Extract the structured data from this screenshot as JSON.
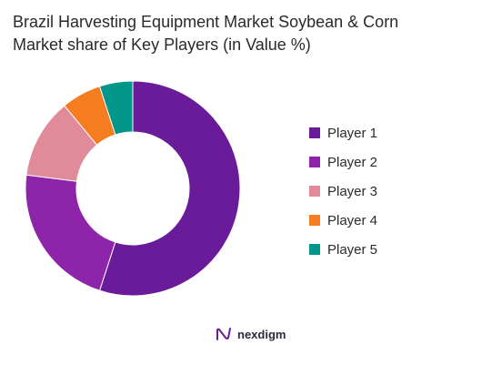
{
  "title_line1": "Brazil Harvesting Equipment Market Soybean & Corn",
  "title_line2": "Market share of Key Players (in Value %)",
  "brand": {
    "name": "nexdigm",
    "icon": "nexdigm-logo-icon",
    "color": "#6a1b9a"
  },
  "chart_data": {
    "type": "pie",
    "donut": true,
    "title": "Brazil Harvesting Equipment Market Soybean & Corn Market share of Key Players (in Value %)",
    "categories": [
      "Player 1",
      "Player 2",
      "Player 3",
      "Player 4",
      "Player 5"
    ],
    "values": [
      55,
      22,
      12,
      6,
      5
    ],
    "colors": [
      "#6a1b9a",
      "#8e24aa",
      "#e08a9a",
      "#f57c1f",
      "#00968a"
    ],
    "legend_placement": "right"
  }
}
